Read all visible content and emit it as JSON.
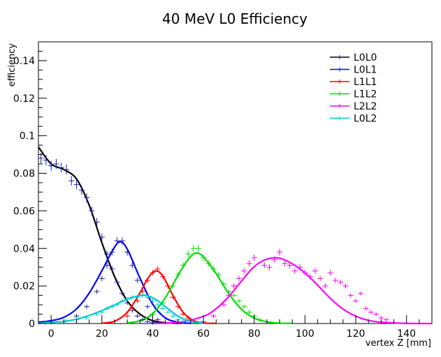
{
  "chart_data": {
    "type": "line",
    "title": "40 MeV L0 Efficiency",
    "xlabel": "vertex Z [mm]",
    "ylabel": "efficiency",
    "xlim": [
      -5,
      150
    ],
    "ylim": [
      0,
      0.15
    ],
    "xticks": [
      0,
      20,
      40,
      60,
      80,
      100,
      120,
      140
    ],
    "yticks": [
      0,
      0.02,
      0.04,
      0.06,
      0.08,
      0.1,
      0.12,
      0.14
    ],
    "yticks_labels": [
      "0",
      "0.02",
      "0.04",
      "0.06",
      "0.08",
      "0.1",
      "0.12",
      "0.14"
    ],
    "legend_position": "top-right",
    "grid": false,
    "series": [
      {
        "name": "L0L0",
        "color": "#000000",
        "marker_color": "#1a1ab8",
        "points": [
          [
            -4,
            0.088
          ],
          [
            -2,
            0.087
          ],
          [
            0,
            0.084
          ],
          [
            2,
            0.085
          ],
          [
            4,
            0.083
          ],
          [
            6,
            0.082
          ],
          [
            8,
            0.076
          ],
          [
            10,
            0.074
          ],
          [
            12,
            0.071
          ],
          [
            14,
            0.067
          ],
          [
            16,
            0.06
          ],
          [
            18,
            0.054
          ],
          [
            20,
            0.046
          ],
          [
            22,
            0.037
          ],
          [
            24,
            0.029
          ],
          [
            26,
            0.022
          ],
          [
            28,
            0.016
          ],
          [
            30,
            0.011
          ],
          [
            32,
            0.007
          ],
          [
            34,
            0.004
          ],
          [
            36,
            0.002
          ],
          [
            38,
            0.001
          ],
          [
            40,
            0.0005
          ]
        ],
        "fit": [
          [
            -5,
            0.094
          ],
          [
            0,
            0.085
          ],
          [
            5,
            0.082
          ],
          [
            10,
            0.077
          ],
          [
            15,
            0.063
          ],
          [
            20,
            0.043
          ],
          [
            25,
            0.025
          ],
          [
            30,
            0.012
          ],
          [
            35,
            0.005
          ],
          [
            40,
            0.0015
          ],
          [
            45,
            0.0004
          ],
          [
            50,
            0.0001
          ]
        ]
      },
      {
        "name": "L0L1",
        "color": "#0000ff",
        "marker_color": "#1a1ab8",
        "points": [
          [
            10,
            0.004
          ],
          [
            14,
            0.009
          ],
          [
            18,
            0.017
          ],
          [
            20,
            0.024
          ],
          [
            22,
            0.031
          ],
          [
            24,
            0.038
          ],
          [
            26,
            0.044
          ],
          [
            28,
            0.044
          ],
          [
            30,
            0.038
          ],
          [
            32,
            0.031
          ],
          [
            34,
            0.023
          ],
          [
            36,
            0.015
          ],
          [
            38,
            0.009
          ],
          [
            40,
            0.005
          ],
          [
            42,
            0.002
          ]
        ],
        "fit": [
          [
            -5,
            0.0007
          ],
          [
            0,
            0.0015
          ],
          [
            5,
            0.0033
          ],
          [
            10,
            0.0078
          ],
          [
            15,
            0.0162
          ],
          [
            20,
            0.0281
          ],
          [
            24,
            0.0384
          ],
          [
            27,
            0.0435
          ],
          [
            30,
            0.0396
          ],
          [
            35,
            0.0242
          ],
          [
            40,
            0.0103
          ],
          [
            45,
            0.003
          ],
          [
            50,
            0.0007
          ],
          [
            55,
            0.0001
          ]
        ]
      },
      {
        "name": "L1L1",
        "color": "#ff0000",
        "marker_color": "#ff0000",
        "points": [
          [
            30,
            0.004
          ],
          [
            32,
            0.008
          ],
          [
            34,
            0.012
          ],
          [
            36,
            0.017
          ],
          [
            38,
            0.023
          ],
          [
            40,
            0.027
          ],
          [
            42,
            0.029
          ],
          [
            44,
            0.025
          ],
          [
            46,
            0.02
          ],
          [
            48,
            0.014
          ],
          [
            50,
            0.009
          ],
          [
            52,
            0.005
          ],
          [
            54,
            0.003
          ]
        ],
        "fit": [
          [
            20,
            0.0002
          ],
          [
            25,
            0.0012
          ],
          [
            30,
            0.006
          ],
          [
            35,
            0.0163
          ],
          [
            38,
            0.0238
          ],
          [
            41,
            0.028
          ],
          [
            44,
            0.0253
          ],
          [
            48,
            0.0149
          ],
          [
            52,
            0.006
          ],
          [
            56,
            0.0016
          ],
          [
            60,
            0.0003
          ],
          [
            65,
            0.0001
          ]
        ]
      },
      {
        "name": "L1L2",
        "color": "#00dd00",
        "marker_color": "#00dd00",
        "points": [
          [
            40,
            0.005
          ],
          [
            44,
            0.011
          ],
          [
            48,
            0.02
          ],
          [
            50,
            0.026
          ],
          [
            52,
            0.031
          ],
          [
            54,
            0.037
          ],
          [
            56,
            0.04
          ],
          [
            58,
            0.04
          ],
          [
            60,
            0.035
          ],
          [
            62,
            0.032
          ],
          [
            64,
            0.029
          ],
          [
            66,
            0.026
          ],
          [
            68,
            0.021
          ],
          [
            70,
            0.017
          ],
          [
            72,
            0.015
          ],
          [
            74,
            0.012
          ],
          [
            76,
            0.009
          ],
          [
            78,
            0.006
          ],
          [
            80,
            0.004
          ],
          [
            82,
            0.002
          ]
        ],
        "fit": [
          [
            30,
            0.0003
          ],
          [
            35,
            0.0015
          ],
          [
            40,
            0.0052
          ],
          [
            45,
            0.0138
          ],
          [
            50,
            0.0257
          ],
          [
            54,
            0.0342
          ],
          [
            57,
            0.0375
          ],
          [
            60,
            0.0355
          ],
          [
            65,
            0.0266
          ],
          [
            70,
            0.0159
          ],
          [
            75,
            0.0076
          ],
          [
            80,
            0.0029
          ],
          [
            85,
            0.0009
          ],
          [
            90,
            0.0002
          ],
          [
            95,
            0.0001
          ]
        ]
      },
      {
        "name": "L2L2",
        "color": "#ff00ff",
        "marker_color": "#ff00ff",
        "points": [
          [
            60,
            0.001
          ],
          [
            64,
            0.004
          ],
          [
            68,
            0.01
          ],
          [
            70,
            0.015
          ],
          [
            72,
            0.02
          ],
          [
            74,
            0.024
          ],
          [
            76,
            0.028
          ],
          [
            78,
            0.032
          ],
          [
            80,
            0.035
          ],
          [
            84,
            0.031
          ],
          [
            86,
            0.03
          ],
          [
            88,
            0.034
          ],
          [
            90,
            0.038
          ],
          [
            92,
            0.032
          ],
          [
            94,
            0.031
          ],
          [
            96,
            0.028
          ],
          [
            98,
            0.03
          ],
          [
            100,
            0.027
          ],
          [
            102,
            0.025
          ],
          [
            104,
            0.028
          ],
          [
            106,
            0.024
          ],
          [
            108,
            0.02
          ],
          [
            110,
            0.027
          ],
          [
            112,
            0.023
          ],
          [
            114,
            0.022
          ],
          [
            116,
            0.02
          ],
          [
            118,
            0.015
          ],
          [
            120,
            0.012
          ],
          [
            122,
            0.016
          ],
          [
            124,
            0.008
          ],
          [
            126,
            0.006
          ],
          [
            128,
            0.005
          ],
          [
            130,
            0.003
          ],
          [
            132,
            0.002
          ]
        ],
        "fit": [
          [
            40,
            0.0001
          ],
          [
            50,
            0.0006
          ],
          [
            60,
            0.0038
          ],
          [
            65,
            0.0079
          ],
          [
            70,
            0.0144
          ],
          [
            75,
            0.0226
          ],
          [
            80,
            0.0303
          ],
          [
            85,
            0.0343
          ],
          [
            90,
            0.0348
          ],
          [
            95,
            0.0318
          ],
          [
            100,
            0.027
          ],
          [
            105,
            0.0204
          ],
          [
            110,
            0.0134
          ],
          [
            115,
            0.0077
          ],
          [
            120,
            0.0039
          ],
          [
            125,
            0.0017
          ],
          [
            130,
            0.0007
          ],
          [
            140,
            0.0001
          ],
          [
            150,
            0.0
          ]
        ]
      },
      {
        "name": "L0L2",
        "color": "#00cccc",
        "marker_color": "#00cccc",
        "points": [
          [
            -2,
            0.0005
          ],
          [
            2,
            0.001
          ],
          [
            6,
            0.0015
          ],
          [
            10,
            0.002
          ],
          [
            14,
            0.003
          ],
          [
            18,
            0.005
          ],
          [
            20,
            0.006
          ],
          [
            22,
            0.008
          ],
          [
            24,
            0.009
          ],
          [
            26,
            0.01
          ],
          [
            28,
            0.012
          ],
          [
            30,
            0.013
          ],
          [
            32,
            0.014
          ],
          [
            34,
            0.014
          ],
          [
            36,
            0.015
          ],
          [
            38,
            0.014
          ],
          [
            40,
            0.012
          ],
          [
            42,
            0.01
          ],
          [
            44,
            0.008
          ],
          [
            46,
            0.006
          ],
          [
            48,
            0.004
          ],
          [
            50,
            0.002
          ],
          [
            52,
            0.001
          ]
        ],
        "fit": [
          [
            -5,
            0.0001
          ],
          [
            5,
            0.0011
          ],
          [
            10,
            0.0023
          ],
          [
            15,
            0.0043
          ],
          [
            20,
            0.0069
          ],
          [
            25,
            0.0099
          ],
          [
            30,
            0.0129
          ],
          [
            35,
            0.0149
          ],
          [
            38,
            0.0148
          ],
          [
            42,
            0.0121
          ],
          [
            46,
            0.0079
          ],
          [
            50,
            0.0039
          ],
          [
            55,
            0.0011
          ],
          [
            60,
            0.0002
          ]
        ]
      }
    ]
  }
}
